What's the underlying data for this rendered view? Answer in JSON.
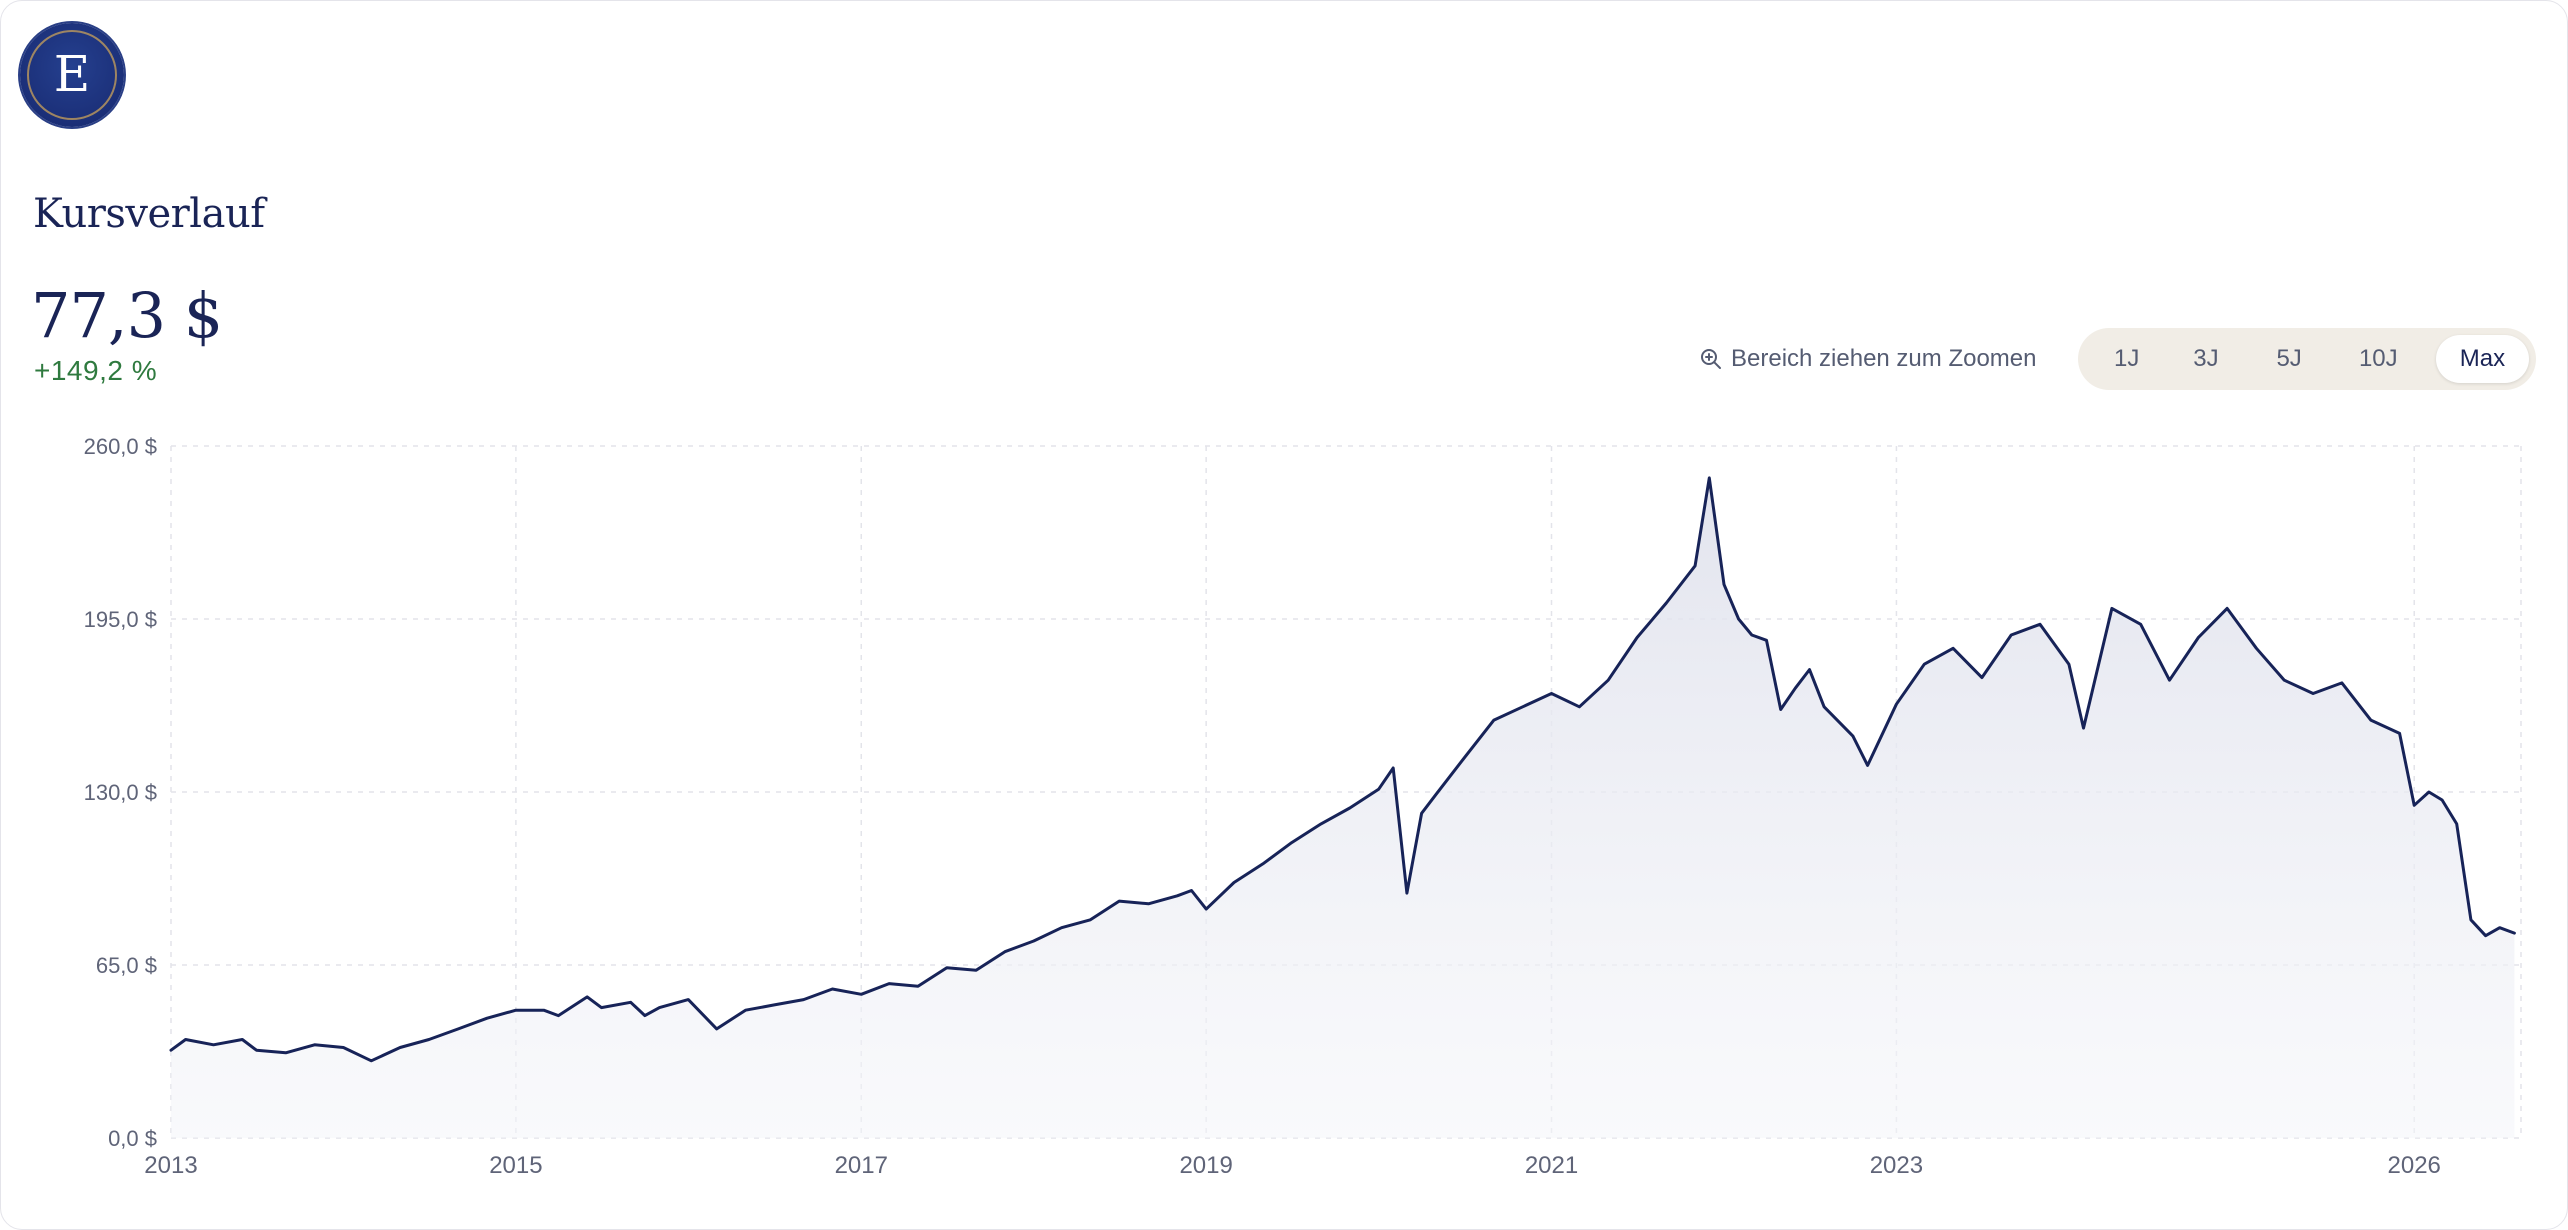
{
  "brand": {
    "logo_letter": "E"
  },
  "section_title": "Kursverlauf",
  "price": {
    "value": "77,3 $",
    "change": "+149,2 %"
  },
  "zoom_hint": "Bereich ziehen zum Zoomen",
  "ranges": [
    "1J",
    "3J",
    "5J",
    "10J",
    "Max"
  ],
  "selected_range": "Max",
  "colors": {
    "line": "#172358",
    "positive": "#2f7a3f",
    "switch_bg": "#f1ede6"
  },
  "chart_data": {
    "type": "area",
    "title": "",
    "xlabel": "",
    "ylabel": "",
    "ylim": [
      0,
      260
    ],
    "xlim": [
      "2013-01-01",
      "2026-08-15"
    ],
    "yticks": [
      0,
      65,
      130,
      195,
      260
    ],
    "ytick_labels": [
      "0,0 $",
      "65,0 $",
      "130,0 $",
      "195,0 $",
      "260,0 $"
    ],
    "xtick_labels": [
      "2013",
      "2015",
      "2017",
      "2019",
      "2021",
      "2023",
      "2026"
    ],
    "grid": true,
    "series": [
      {
        "x": [
          "2013-01",
          "2013-02",
          "2013-04",
          "2013-06",
          "2013-07",
          "2013-09",
          "2013-11",
          "2014-01",
          "2014-03",
          "2014-05",
          "2014-07",
          "2014-09",
          "2014-11",
          "2015-01",
          "2015-03",
          "2015-04",
          "2015-06",
          "2015-07",
          "2015-09",
          "2015-10",
          "2015-11",
          "2016-01",
          "2016-03",
          "2016-05",
          "2016-07",
          "2016-09",
          "2016-11",
          "2017-01",
          "2017-03",
          "2017-05",
          "2017-07",
          "2017-09",
          "2017-11",
          "2018-01",
          "2018-03",
          "2018-05",
          "2018-07",
          "2018-09",
          "2018-11",
          "2018-12",
          "2019-01",
          "2019-03",
          "2019-05",
          "2019-07",
          "2019-09",
          "2019-11",
          "2020-01",
          "2020-02",
          "2020-03",
          "2020-04",
          "2020-05",
          "2020-07",
          "2020-09",
          "2020-11",
          "2021-01",
          "2021-03",
          "2021-05",
          "2021-07",
          "2021-09",
          "2021-11",
          "2021-12",
          "2022-01",
          "2022-02",
          "2022-03",
          "2022-04",
          "2022-05",
          "2022-06",
          "2022-07",
          "2022-08",
          "2022-10",
          "2022-11",
          "2023-01",
          "2023-03",
          "2023-05",
          "2023-07",
          "2023-09",
          "2023-11",
          "2024-01",
          "2024-02",
          "2024-04",
          "2024-06",
          "2024-08",
          "2024-10",
          "2024-12",
          "2025-02",
          "2025-04",
          "2025-06",
          "2025-08",
          "2025-10",
          "2025-12",
          "2026-01",
          "2026-02",
          "2026-03",
          "2026-04",
          "2026-05",
          "2026-06",
          "2026-07",
          "2026-08"
        ],
        "y": [
          33,
          37,
          35,
          37,
          33,
          32,
          35,
          34,
          29,
          34,
          37,
          41,
          45,
          48,
          48,
          46,
          53,
          49,
          51,
          46,
          49,
          52,
          41,
          48,
          50,
          52,
          56,
          54,
          58,
          57,
          64,
          63,
          70,
          74,
          79,
          82,
          89,
          88,
          91,
          93,
          86,
          96,
          103,
          111,
          118,
          124,
          131,
          139,
          92,
          122,
          129,
          143,
          157,
          162,
          167,
          162,
          172,
          188,
          201,
          215,
          248,
          208,
          195,
          189,
          187,
          161,
          169,
          176,
          162,
          151,
          140,
          163,
          178,
          184,
          173,
          189,
          193,
          178,
          154,
          199,
          193,
          172,
          188,
          199,
          184,
          172,
          167,
          171,
          157,
          152,
          125,
          130,
          127,
          118,
          82,
          76,
          79,
          77
        ]
      }
    ]
  }
}
